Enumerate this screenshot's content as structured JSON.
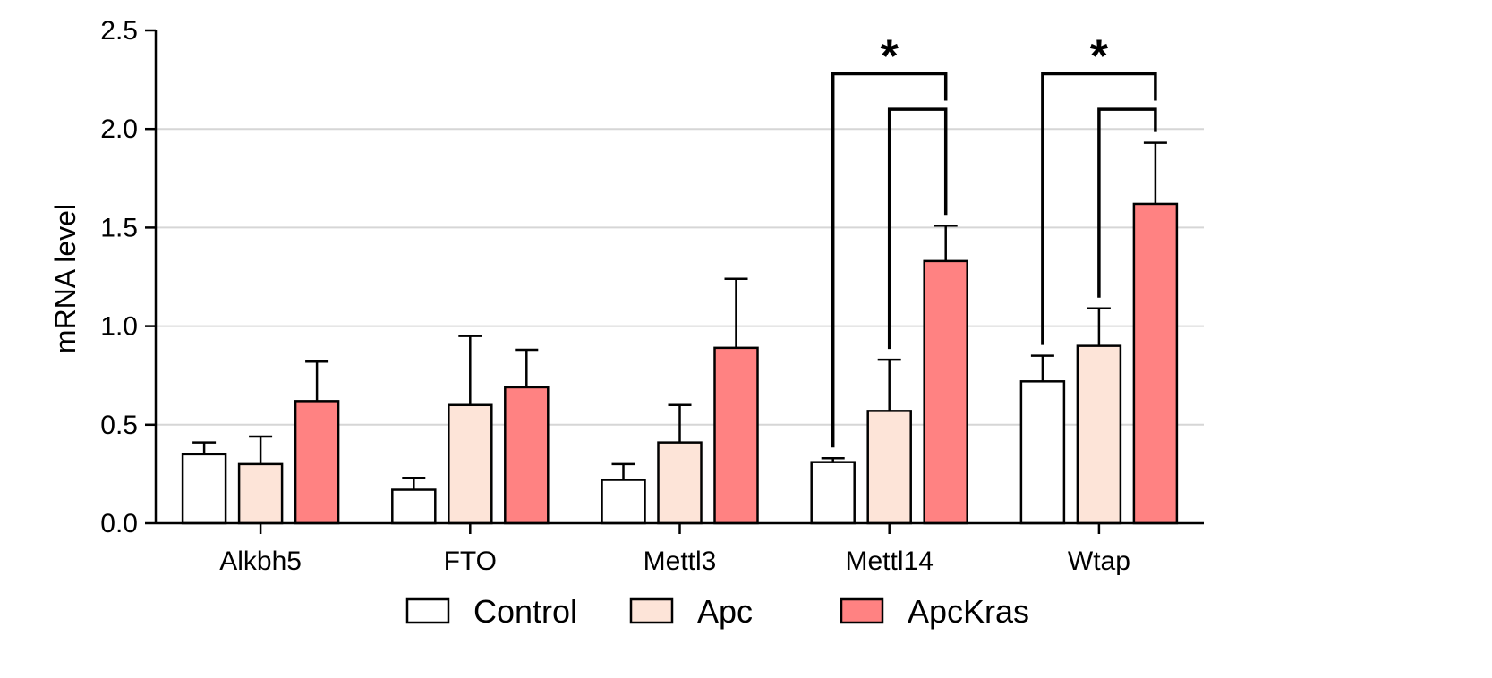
{
  "chart_data": {
    "type": "bar",
    "title": "",
    "xlabel": "",
    "ylabel": "mRNA level",
    "ylim": [
      0,
      2.5
    ],
    "yticks": [
      "0.0",
      "0.5",
      "1.0",
      "1.5",
      "2.0",
      "2.5"
    ],
    "grid": "horizontal",
    "legend_position": "bottom",
    "categories": [
      "Alkbh5",
      "FTO",
      "Mettl3",
      "Mettl14",
      "Wtap"
    ],
    "series": [
      {
        "name": "Control",
        "color": "#ffffff",
        "values": [
          0.35,
          0.17,
          0.22,
          0.31,
          0.72
        ],
        "errors": [
          0.06,
          0.06,
          0.08,
          0.02,
          0.13
        ]
      },
      {
        "name": "Apc",
        "color": "#fde4d8",
        "values": [
          0.3,
          0.6,
          0.41,
          0.57,
          0.9
        ],
        "errors": [
          0.14,
          0.35,
          0.19,
          0.26,
          0.19
        ]
      },
      {
        "name": "ApcKras",
        "color": "#ff8282",
        "values": [
          0.62,
          0.69,
          0.89,
          1.33,
          1.62
        ],
        "errors": [
          0.2,
          0.19,
          0.35,
          0.18,
          0.31
        ]
      }
    ],
    "significance": [
      {
        "category": "Mettl14",
        "label": "*"
      },
      {
        "category": "Wtap",
        "label": "*"
      }
    ]
  }
}
